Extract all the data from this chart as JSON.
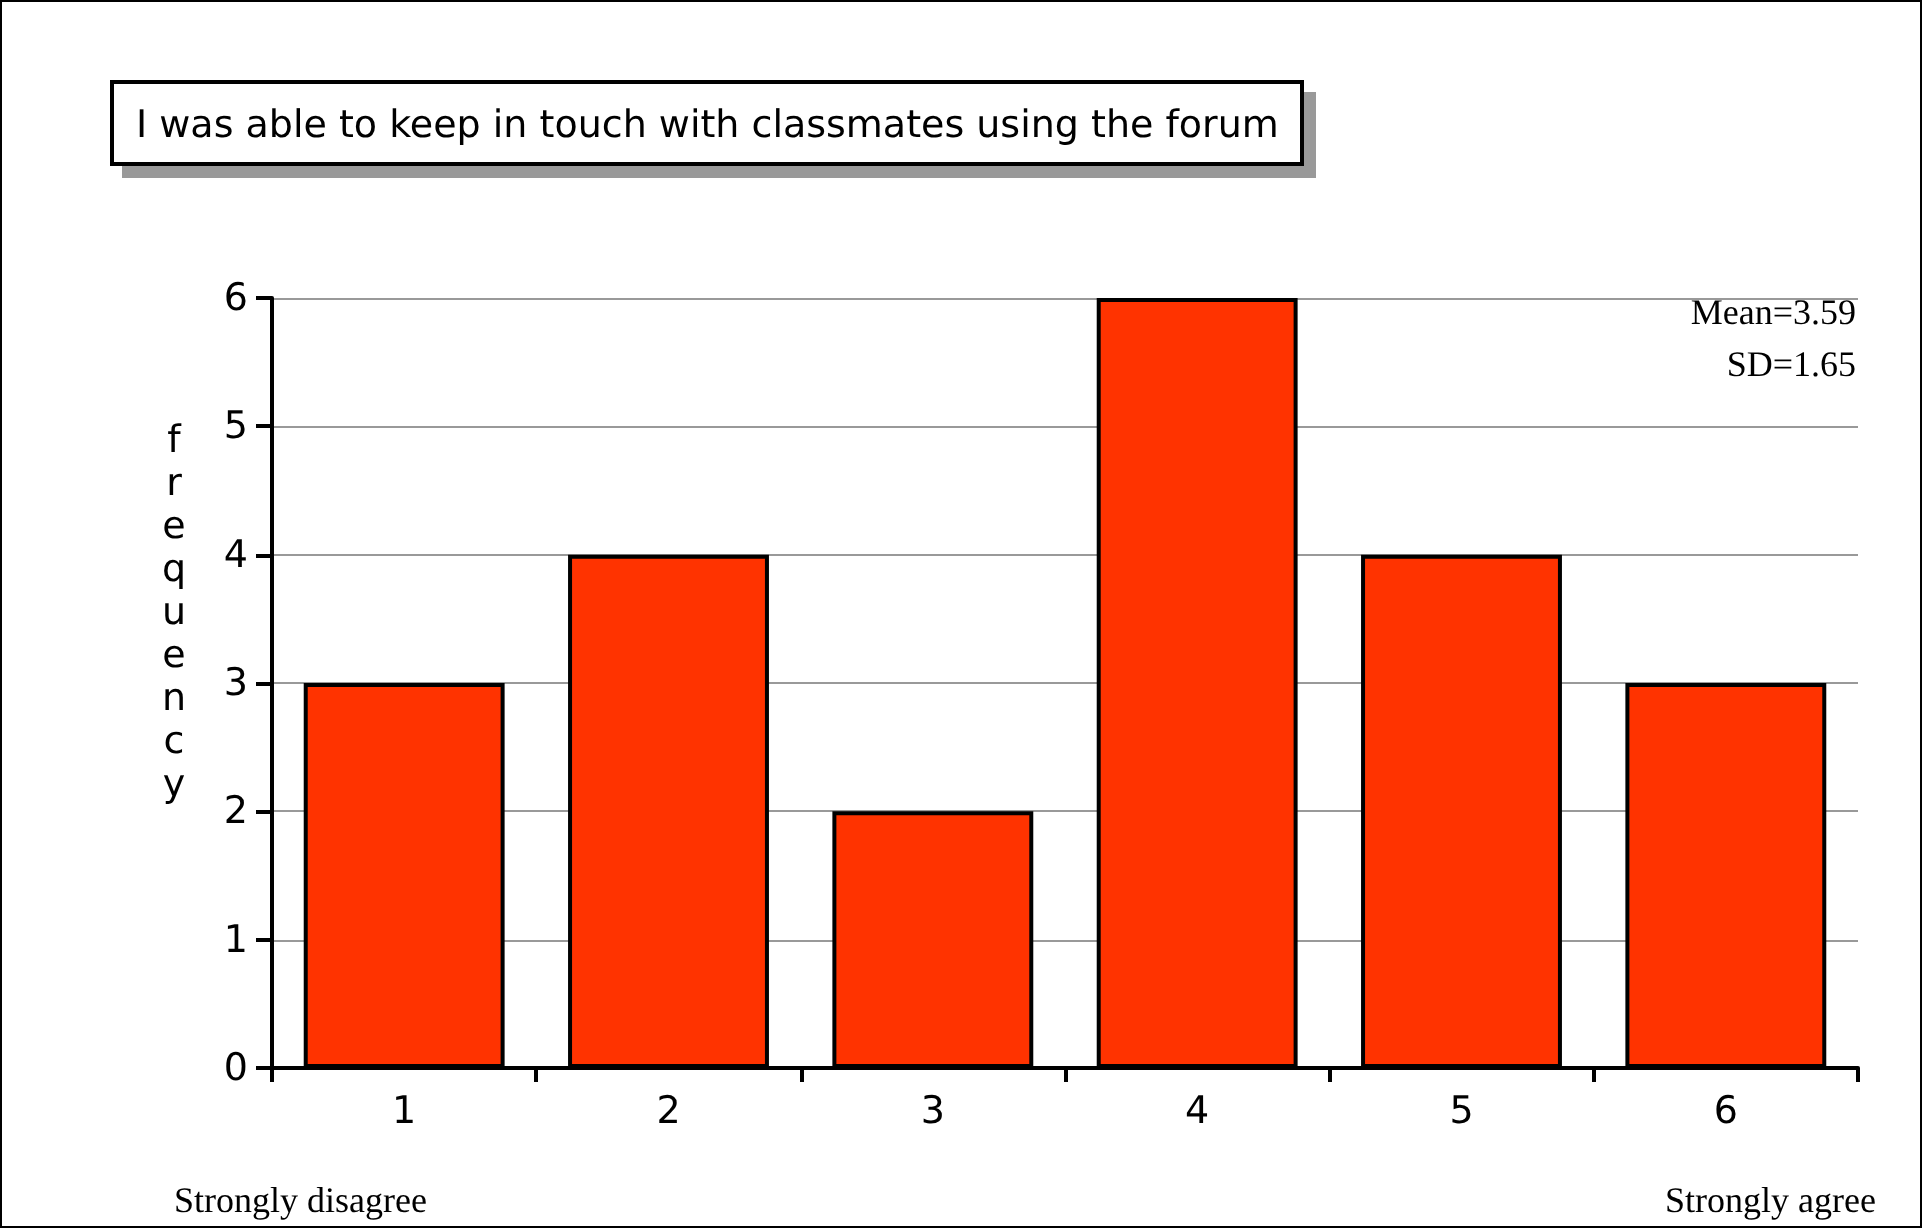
{
  "chart_data": {
    "type": "bar",
    "title": "I was able to keep in touch with classmates using the forum",
    "ylabel": "frequency",
    "categories": [
      "1",
      "2",
      "3",
      "4",
      "5",
      "6"
    ],
    "values": [
      3,
      4,
      2,
      6,
      4,
      3
    ],
    "color": "#ff3300",
    "ylim": [
      0,
      6
    ],
    "yticks": [
      0,
      1,
      2,
      3,
      4,
      5,
      6
    ],
    "grid": "y",
    "annotations": [
      "Mean=3.59",
      "SD=1.65",
      "Strongly disagree",
      "Strongly agree"
    ]
  }
}
